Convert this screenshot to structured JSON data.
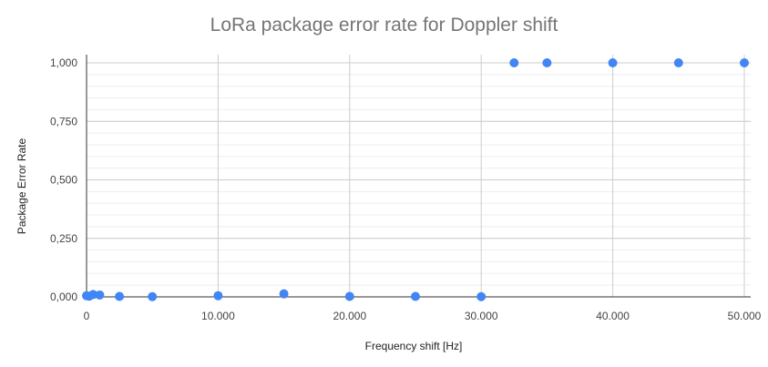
{
  "chart_data": {
    "type": "scatter",
    "title": "LoRa package error rate for Doppler shift",
    "xlabel": "Frequency shift [Hz]",
    "ylabel": "Package Error Rate",
    "xlim": [
      0,
      50000
    ],
    "ylim": [
      0,
      1
    ],
    "x_ticks": [
      0,
      10000,
      20000,
      30000,
      40000,
      50000
    ],
    "x_tick_labels": [
      "0",
      "10.000",
      "20.000",
      "30.000",
      "40.000",
      "50.000"
    ],
    "y_ticks": [
      0,
      0.25,
      0.5,
      0.75,
      1
    ],
    "y_tick_labels": [
      "0,000",
      "0,250",
      "0,500",
      "0,750",
      "1,000"
    ],
    "grid": true,
    "legend": "none",
    "marker_color": "#4285f4",
    "series": [
      {
        "points": [
          {
            "x": 0,
            "y": 0.005
          },
          {
            "x": 200,
            "y": 0.003
          },
          {
            "x": 500,
            "y": 0.01
          },
          {
            "x": 1000,
            "y": 0.008
          },
          {
            "x": 2500,
            "y": 0.002
          },
          {
            "x": 5000,
            "y": 0.001
          },
          {
            "x": 10000,
            "y": 0.005
          },
          {
            "x": 15000,
            "y": 0.013
          },
          {
            "x": 20000,
            "y": 0.002
          },
          {
            "x": 25000,
            "y": 0.002
          },
          {
            "x": 30000,
            "y": 0.001
          },
          {
            "x": 32500,
            "y": 1
          },
          {
            "x": 35000,
            "y": 1
          },
          {
            "x": 40000,
            "y": 1
          },
          {
            "x": 45000,
            "y": 1
          },
          {
            "x": 50000,
            "y": 1
          }
        ]
      }
    ]
  }
}
